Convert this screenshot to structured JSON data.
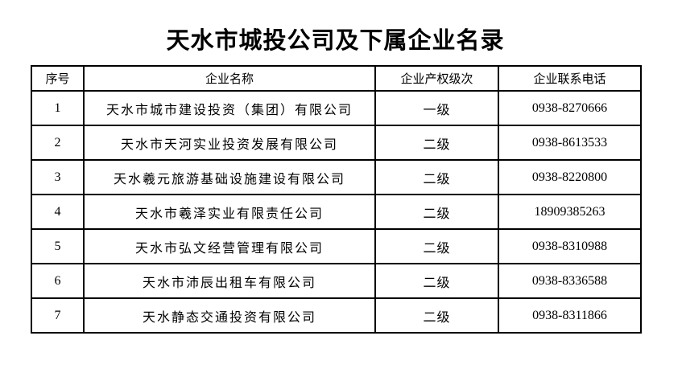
{
  "page": {
    "title": "天水市城投公司及下属企业名录",
    "background": "#ffffff"
  },
  "colors": {
    "text": "#000000",
    "border": "#000000"
  },
  "table": {
    "headers": [
      "序号",
      "企业名称",
      "企业产权级次",
      "企业联系电话"
    ],
    "rows": [
      {
        "no": "1",
        "name": "天水市城市建设投资（集团）有限公司",
        "level": "一级",
        "phone": "0938-8270666"
      },
      {
        "no": "2",
        "name": "天水市天河实业投资发展有限公司",
        "level": "二级",
        "phone": "0938-8613533"
      },
      {
        "no": "3",
        "name": "天水羲元旅游基础设施建设有限公司",
        "level": "二级",
        "phone": "0938-8220800"
      },
      {
        "no": "4",
        "name": "天水市羲泽实业有限责任公司",
        "level": "二级",
        "phone": "18909385263"
      },
      {
        "no": "5",
        "name": "天水市弘文经营管理有限公司",
        "level": "二级",
        "phone": "0938-8310988"
      },
      {
        "no": "6",
        "name": "天水市沛辰出租车有限公司",
        "level": "二级",
        "phone": "0938-8336588"
      },
      {
        "no": "7",
        "name": "天水静态交通投资有限公司",
        "level": "二级",
        "phone": "0938-8311866"
      }
    ]
  }
}
